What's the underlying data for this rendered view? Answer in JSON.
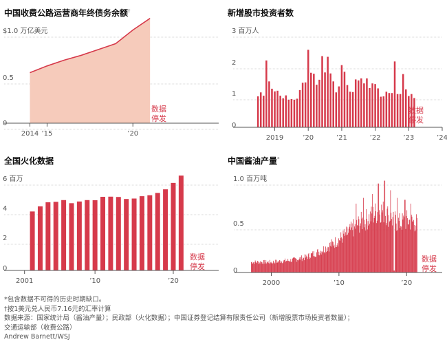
{
  "chart_data": [
    {
      "type": "area",
      "title": "中国收费公路运营商年终债务余额",
      "title_note": "†",
      "unit_label": "$1.0 万亿美元",
      "y_ticks": [
        "0.5",
        "0"
      ],
      "x_ticks": [
        "2014",
        "’15",
        "’20"
      ],
      "x": [
        2014,
        2015,
        2016,
        2017,
        2018,
        2019,
        2020,
        2021
      ],
      "values": [
        0.52,
        0.59,
        0.65,
        0.7,
        0.76,
        0.82,
        0.96,
        1.08
      ],
      "ylim": [
        0,
        1.0
      ],
      "xlim": [
        2013.7,
        2025
      ],
      "halt_note": [
        "数据",
        "停发"
      ],
      "colors": {
        "fill": "#f6cbbb",
        "line": "#d63a4b"
      }
    },
    {
      "type": "bar",
      "title": "新增股市投资者数",
      "unit_label": "3 百万人",
      "y_ticks": [
        "2",
        "1",
        "0"
      ],
      "x_ticks": [
        "2019",
        "’20",
        "’21",
        "’22",
        "’23",
        "’24"
      ],
      "start": "2019-01",
      "frequency": "monthly",
      "values": [
        0.93,
        1.05,
        0.95,
        2.01,
        1.38,
        1.16,
        1.08,
        1.1,
        0.95,
        0.87,
        0.96,
        0.83,
        0.85,
        0.83,
        0.86,
        1.12,
        1.34,
        1.35,
        2.33,
        1.64,
        1.61,
        1.28,
        1.43,
        2.14,
        1.65,
        2.12,
        1.62,
        1.38,
        1.05,
        1.23,
        1.87,
        1.67,
        1.27,
        1.07,
        1.06,
        1.44,
        1.41,
        1.47,
        1.32,
        1.47,
        1.18,
        1.32,
        1.3,
        1.17,
        0.92,
        0.93,
        1.07,
        1.03,
        1.03,
        1.98,
        1.0,
        1.0,
        1.6,
        1.14,
        0.94,
        1.0,
        0.88
      ],
      "ylim": [
        0,
        3
      ],
      "halt_note": [
        "数据",
        "停发"
      ],
      "colors": {
        "bar": "#d63a4b"
      }
    },
    {
      "type": "bar",
      "title": "全国火化数据",
      "unit_label": "6 百万",
      "y_ticks": [
        "4",
        "2",
        "0"
      ],
      "x_ticks": [
        "2001",
        "’10",
        "’20"
      ],
      "x": [
        2002,
        2003,
        2004,
        2005,
        2006,
        2007,
        2008,
        2009,
        2010,
        2011,
        2012,
        2013,
        2014,
        2015,
        2016,
        2017,
        2018,
        2019,
        2020,
        2021
      ],
      "values": [
        3.78,
        4.11,
        4.37,
        4.4,
        4.51,
        4.31,
        4.42,
        4.51,
        4.5,
        4.72,
        4.73,
        4.71,
        4.58,
        4.61,
        4.76,
        4.82,
        4.97,
        5.2,
        5.61,
        6.08
      ],
      "ylim": [
        0,
        6
      ],
      "halt_note": [
        "数据",
        "停发"
      ],
      "colors": {
        "bar": "#d63a4b"
      }
    },
    {
      "type": "bar",
      "title": "中国酱油产量",
      "title_note": "*",
      "unit_label": "1.0 百万吨",
      "y_ticks": [
        "0.5",
        "0"
      ],
      "x_ticks": [
        "2000",
        "’10",
        "’20"
      ],
      "start": "1997-01",
      "frequency": "monthly",
      "trend_points": [
        [
          1997.0,
          0.11
        ],
        [
          2000.0,
          0.11
        ],
        [
          2003.0,
          0.13
        ],
        [
          2005.0,
          0.16
        ],
        [
          2007.0,
          0.22
        ],
        [
          2009.0,
          0.3
        ],
        [
          2011.0,
          0.4
        ],
        [
          2013.0,
          0.52
        ],
        [
          2014.5,
          0.58
        ],
        [
          2016.0,
          0.66
        ],
        [
          2017.0,
          0.62
        ],
        [
          2018.0,
          0.55
        ],
        [
          2019.0,
          0.52
        ],
        [
          2020.0,
          0.55
        ],
        [
          2021.5,
          0.52
        ]
      ],
      "peaks": [
        [
          2015.8,
          0.93
        ],
        [
          2016.7,
          0.96
        ],
        [
          2014.9,
          0.82
        ],
        [
          2013.6,
          0.78
        ],
        [
          2012.5,
          0.72
        ],
        [
          2017.6,
          0.86
        ],
        [
          2018.6,
          0.78
        ],
        [
          2019.7,
          0.76
        ],
        [
          2020.6,
          0.72
        ]
      ],
      "xlim": [
        1997,
        2021.6
      ],
      "ylim": [
        0,
        1.0
      ],
      "halt_note": [
        "数据",
        "停发"
      ],
      "colors": {
        "bar": "#d63a4b"
      }
    }
  ],
  "footer": {
    "notes": [
      "*包含数据不可得的历史时期缺口。",
      "†按1美元兑人民币7.16元的汇率计算",
      "数据来源：国家统计局（酱油产量）；民政部（火化数据）；中国证券登记结算有限责任公司（新增股票市场投资者数量）；",
      "交通运输部（收费公路）",
      "Andrew Barnett/WSJ"
    ]
  }
}
